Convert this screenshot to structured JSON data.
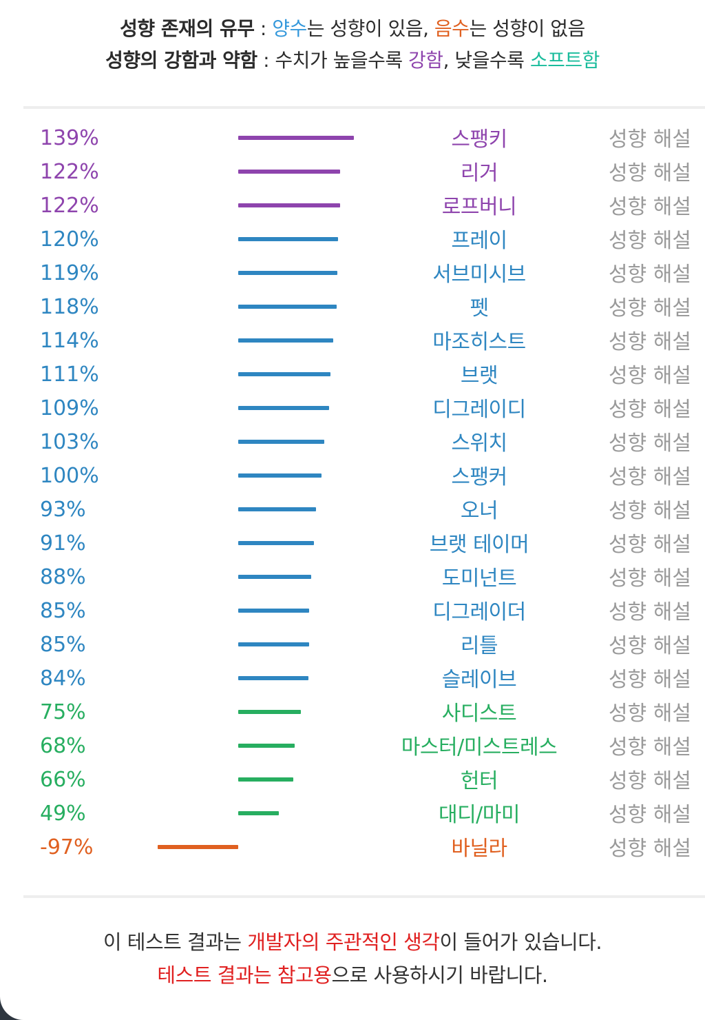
{
  "legend": {
    "line1": {
      "title": "성향 존재의 유무",
      "sep": " : ",
      "positive": "양수",
      "mid": "는 성향이 있음, ",
      "negative": "음수",
      "end": "는 성향이 없음"
    },
    "line2": {
      "title": "성향의 강함과 약함",
      "sep": " : ",
      "mid1": "수치가 높을수록 ",
      "strong": "강함",
      "mid2": ", 낮을수록 ",
      "soft": "소프트함"
    }
  },
  "colors": {
    "strong": "#8e44ad",
    "normal": "#2e86c1",
    "soft": "#27ae60",
    "negative": "#e06020",
    "positive_label": "#3498db",
    "soft_label": "#1abc9c",
    "footer_highlight": "#e02020",
    "muted": "#9a9a9a"
  },
  "chart_data": {
    "type": "bar",
    "orientation": "horizontal",
    "grid": false,
    "xlim": [
      -100,
      140
    ],
    "categories": [
      "스팽키",
      "리거",
      "로프버니",
      "프레이",
      "서브미시브",
      "펫",
      "마조히스트",
      "브랫",
      "디그레이디",
      "스위치",
      "스팽커",
      "오너",
      "브랫 테이머",
      "도미넌트",
      "디그레이더",
      "리틀",
      "슬레이브",
      "사디스트",
      "마스터/미스트레스",
      "헌터",
      "대디/마미",
      "바닐라"
    ],
    "values": [
      139,
      122,
      122,
      120,
      119,
      118,
      114,
      111,
      109,
      103,
      100,
      93,
      91,
      88,
      85,
      85,
      84,
      75,
      68,
      66,
      49,
      -97
    ],
    "value_labels": [
      "139%",
      "122%",
      "122%",
      "120%",
      "119%",
      "118%",
      "114%",
      "111%",
      "109%",
      "103%",
      "100%",
      "93%",
      "91%",
      "88%",
      "85%",
      "85%",
      "84%",
      "75%",
      "68%",
      "66%",
      "49%",
      "-97%"
    ],
    "tiers": [
      "strong",
      "strong",
      "strong",
      "normal",
      "normal",
      "normal",
      "normal",
      "normal",
      "normal",
      "normal",
      "normal",
      "normal",
      "normal",
      "normal",
      "normal",
      "normal",
      "normal",
      "soft",
      "soft",
      "soft",
      "soft",
      "negative"
    ],
    "link_label": "성향 해설"
  },
  "footer": {
    "line1": {
      "pre": "이 테스트 결과는 ",
      "highlight": "개발자의 주관적인 생각",
      "post": "이 들어가 있습니다."
    },
    "line2": {
      "highlight": "테스트 결과는 참고용",
      "post": "으로 사용하시기 바랍니다."
    }
  }
}
